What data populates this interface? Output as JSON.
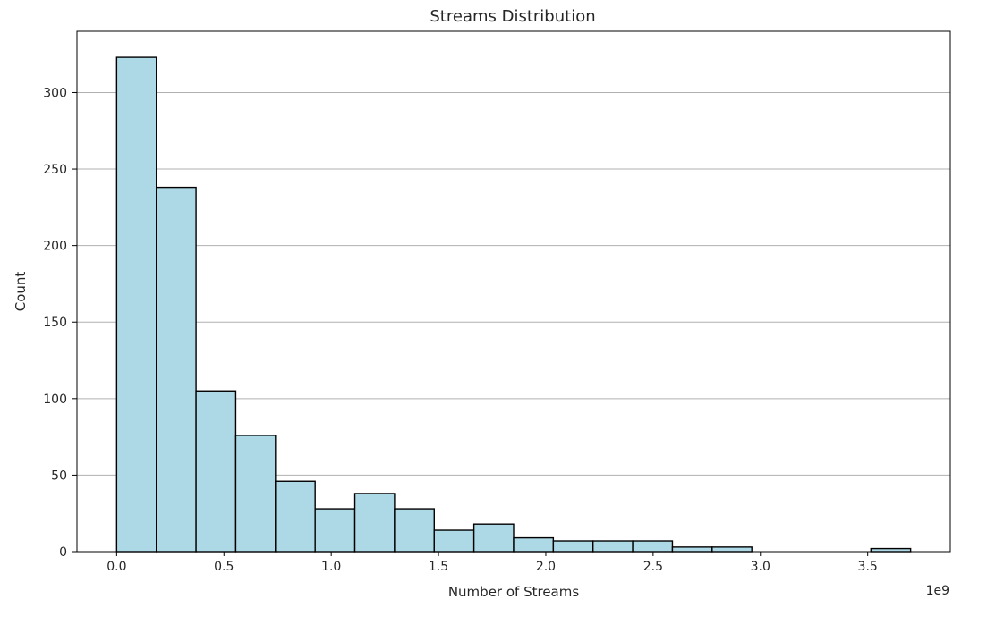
{
  "chart_data": {
    "type": "bar",
    "subtype": "histogram",
    "title": "Streams Distribution",
    "xlabel": "Number of Streams",
    "ylabel": "Count",
    "x_offset_label": "1e9",
    "xlim": [
      -0.185,
      3.885
    ],
    "ylim": [
      0,
      340
    ],
    "x_ticks": [
      0.0,
      0.5,
      1.0,
      1.5,
      2.0,
      2.5,
      3.0,
      3.5
    ],
    "x_tick_labels": [
      "0.0",
      "0.5",
      "1.0",
      "1.5",
      "2.0",
      "2.5",
      "3.0",
      "3.5"
    ],
    "y_ticks": [
      0,
      50,
      100,
      150,
      200,
      250,
      300
    ],
    "y_tick_labels": [
      "0",
      "50",
      "100",
      "150",
      "200",
      "250",
      "300"
    ],
    "bin_edges": [
      0.0,
      0.185,
      0.37,
      0.555,
      0.74,
      0.925,
      1.11,
      1.295,
      1.48,
      1.665,
      1.85,
      2.035,
      2.22,
      2.405,
      2.59,
      2.775,
      2.96,
      3.145,
      3.33,
      3.515,
      3.7
    ],
    "counts": [
      323,
      238,
      105,
      76,
      46,
      28,
      38,
      28,
      14,
      18,
      9,
      7,
      7,
      7,
      3,
      3,
      0,
      0,
      0,
      2
    ],
    "grid": "y",
    "colors": {
      "bar_fill": "#add8e6",
      "bar_edge": "#000000",
      "grid": "#b0b0b0",
      "axis": "#000000"
    }
  }
}
